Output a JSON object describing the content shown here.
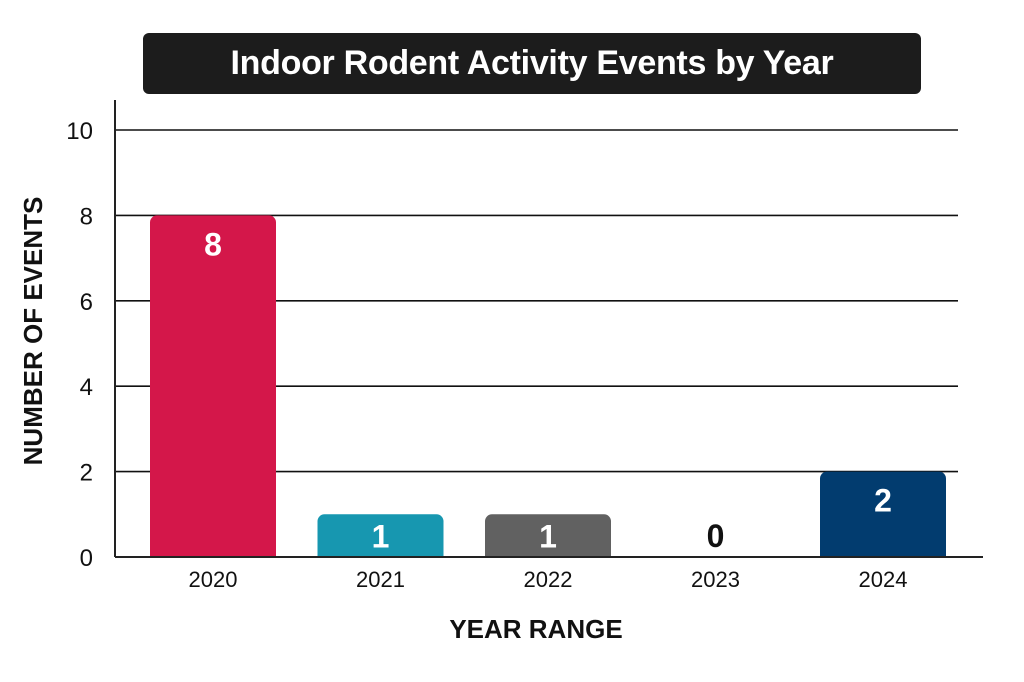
{
  "chart_data": {
    "type": "bar",
    "title": "Indoor Rodent Activity Events by Year",
    "xlabel": "YEAR RANGE",
    "ylabel": "NUMBER OF EVENTS",
    "categories": [
      "2020",
      "2021",
      "2022",
      "2023",
      "2024"
    ],
    "values": [
      8,
      1,
      1,
      0,
      2
    ],
    "value_labels": [
      "8",
      "1",
      "1",
      "0",
      "2"
    ],
    "colors": [
      "#d4174a",
      "#1797b0",
      "#616161",
      "#ffffff",
      "#023c6f"
    ],
    "ylim": [
      0,
      10
    ],
    "yticks": [
      "0",
      "2",
      "4",
      "6",
      "8",
      "10"
    ],
    "ytick_values": [
      0,
      2,
      4,
      6,
      8,
      10
    ],
    "grid": true,
    "legend": "none"
  }
}
